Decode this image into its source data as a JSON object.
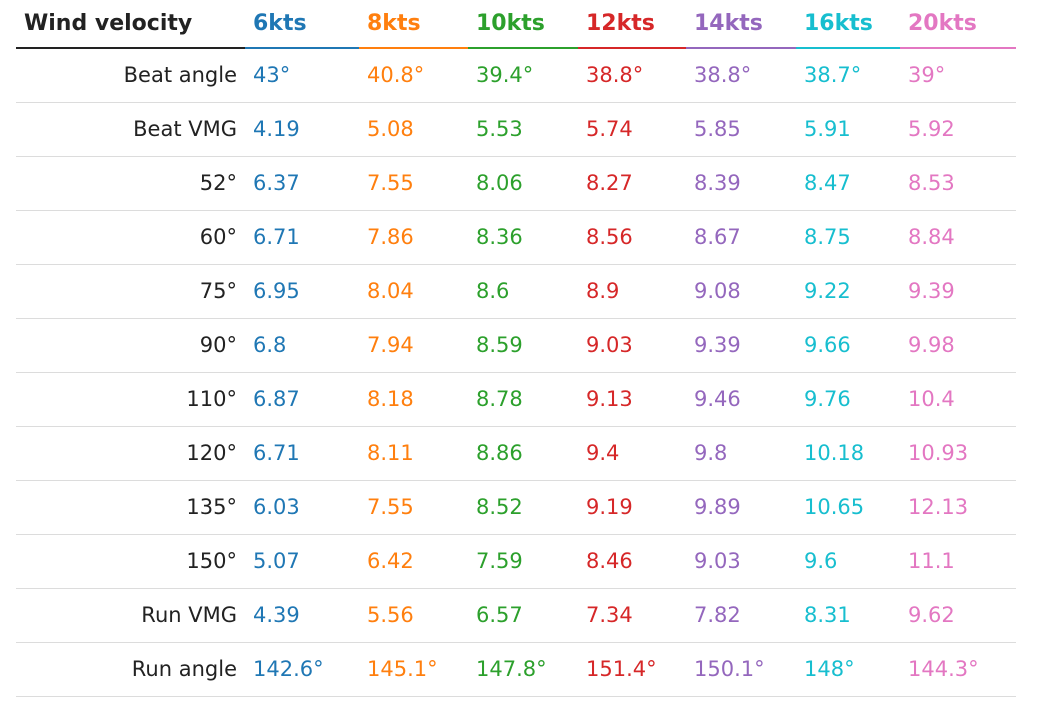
{
  "chart_data": {
    "type": "table",
    "header_label": "Wind velocity",
    "columns": [
      {
        "label": "6kts",
        "color": "#1f77b4"
      },
      {
        "label": "8kts",
        "color": "#ff7f0e"
      },
      {
        "label": "10kts",
        "color": "#2ca02c"
      },
      {
        "label": "12kts",
        "color": "#d62728"
      },
      {
        "label": "14kts",
        "color": "#9467bd"
      },
      {
        "label": "16kts",
        "color": "#17becf"
      },
      {
        "label": "20kts",
        "color": "#e377c2"
      }
    ],
    "rows": [
      {
        "label": "Beat angle",
        "values": [
          "43°",
          "40.8°",
          "39.4°",
          "38.8°",
          "38.8°",
          "38.7°",
          "39°"
        ]
      },
      {
        "label": "Beat VMG",
        "values": [
          "4.19",
          "5.08",
          "5.53",
          "5.74",
          "5.85",
          "5.91",
          "5.92"
        ]
      },
      {
        "label": "52°",
        "values": [
          "6.37",
          "7.55",
          "8.06",
          "8.27",
          "8.39",
          "8.47",
          "8.53"
        ]
      },
      {
        "label": "60°",
        "values": [
          "6.71",
          "7.86",
          "8.36",
          "8.56",
          "8.67",
          "8.75",
          "8.84"
        ]
      },
      {
        "label": "75°",
        "values": [
          "6.95",
          "8.04",
          "8.6",
          "8.9",
          "9.08",
          "9.22",
          "9.39"
        ]
      },
      {
        "label": "90°",
        "values": [
          "6.8",
          "7.94",
          "8.59",
          "9.03",
          "9.39",
          "9.66",
          "9.98"
        ]
      },
      {
        "label": "110°",
        "values": [
          "6.87",
          "8.18",
          "8.78",
          "9.13",
          "9.46",
          "9.76",
          "10.4"
        ]
      },
      {
        "label": "120°",
        "values": [
          "6.71",
          "8.11",
          "8.86",
          "9.4",
          "9.8",
          "10.18",
          "10.93"
        ]
      },
      {
        "label": "135°",
        "values": [
          "6.03",
          "7.55",
          "8.52",
          "9.19",
          "9.89",
          "10.65",
          "12.13"
        ]
      },
      {
        "label": "150°",
        "values": [
          "5.07",
          "6.42",
          "7.59",
          "8.46",
          "9.03",
          "9.6",
          "11.1"
        ]
      },
      {
        "label": "Run VMG",
        "values": [
          "4.39",
          "5.56",
          "6.57",
          "7.34",
          "7.82",
          "8.31",
          "9.62"
        ]
      },
      {
        "label": "Run angle",
        "values": [
          "142.6°",
          "145.1°",
          "147.8°",
          "151.4°",
          "150.1°",
          "148°",
          "144.3°"
        ]
      }
    ]
  }
}
